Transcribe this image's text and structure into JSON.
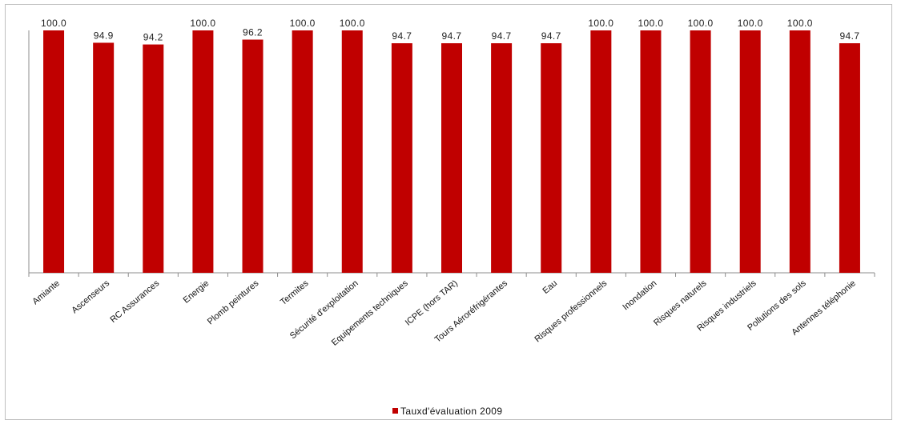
{
  "chart_data": {
    "type": "bar",
    "title": "",
    "xlabel": "",
    "ylabel": "",
    "categories": [
      "Amiante",
      "Ascenseurs",
      "RC Assurances",
      "Energie",
      "Plomb peintures",
      "Termites",
      "Sécurité d'exploitation",
      "Equipements techniques",
      "ICPE (hors TAR)",
      "Tours Aéroréfrigérantes",
      "Eau",
      "Risques professionnels",
      "Inondation",
      "Risques naturels",
      "Risques industriels",
      "Pollutions des sols",
      "Antennes téléphonie"
    ],
    "series": [
      {
        "name": "Tauxd'évaluation 2009",
        "values": [
          100.0,
          94.9,
          94.2,
          100.0,
          96.2,
          100.0,
          100.0,
          94.7,
          94.7,
          94.7,
          94.7,
          100.0,
          100.0,
          100.0,
          100.0,
          100.0,
          94.7
        ],
        "labels": [
          "100.0",
          "94.9",
          "94.2",
          "100.0",
          "96.2",
          "100.0",
          "100.0",
          "94.7",
          "94.7",
          "94.7",
          "94.7",
          "100.0",
          "100.0",
          "100.0",
          "100.0",
          "100.0",
          "94.7"
        ],
        "color": "#c00000"
      }
    ],
    "ylim": [
      0,
      100
    ],
    "grid": false,
    "legend": "bottom-center",
    "data_labels": true
  }
}
